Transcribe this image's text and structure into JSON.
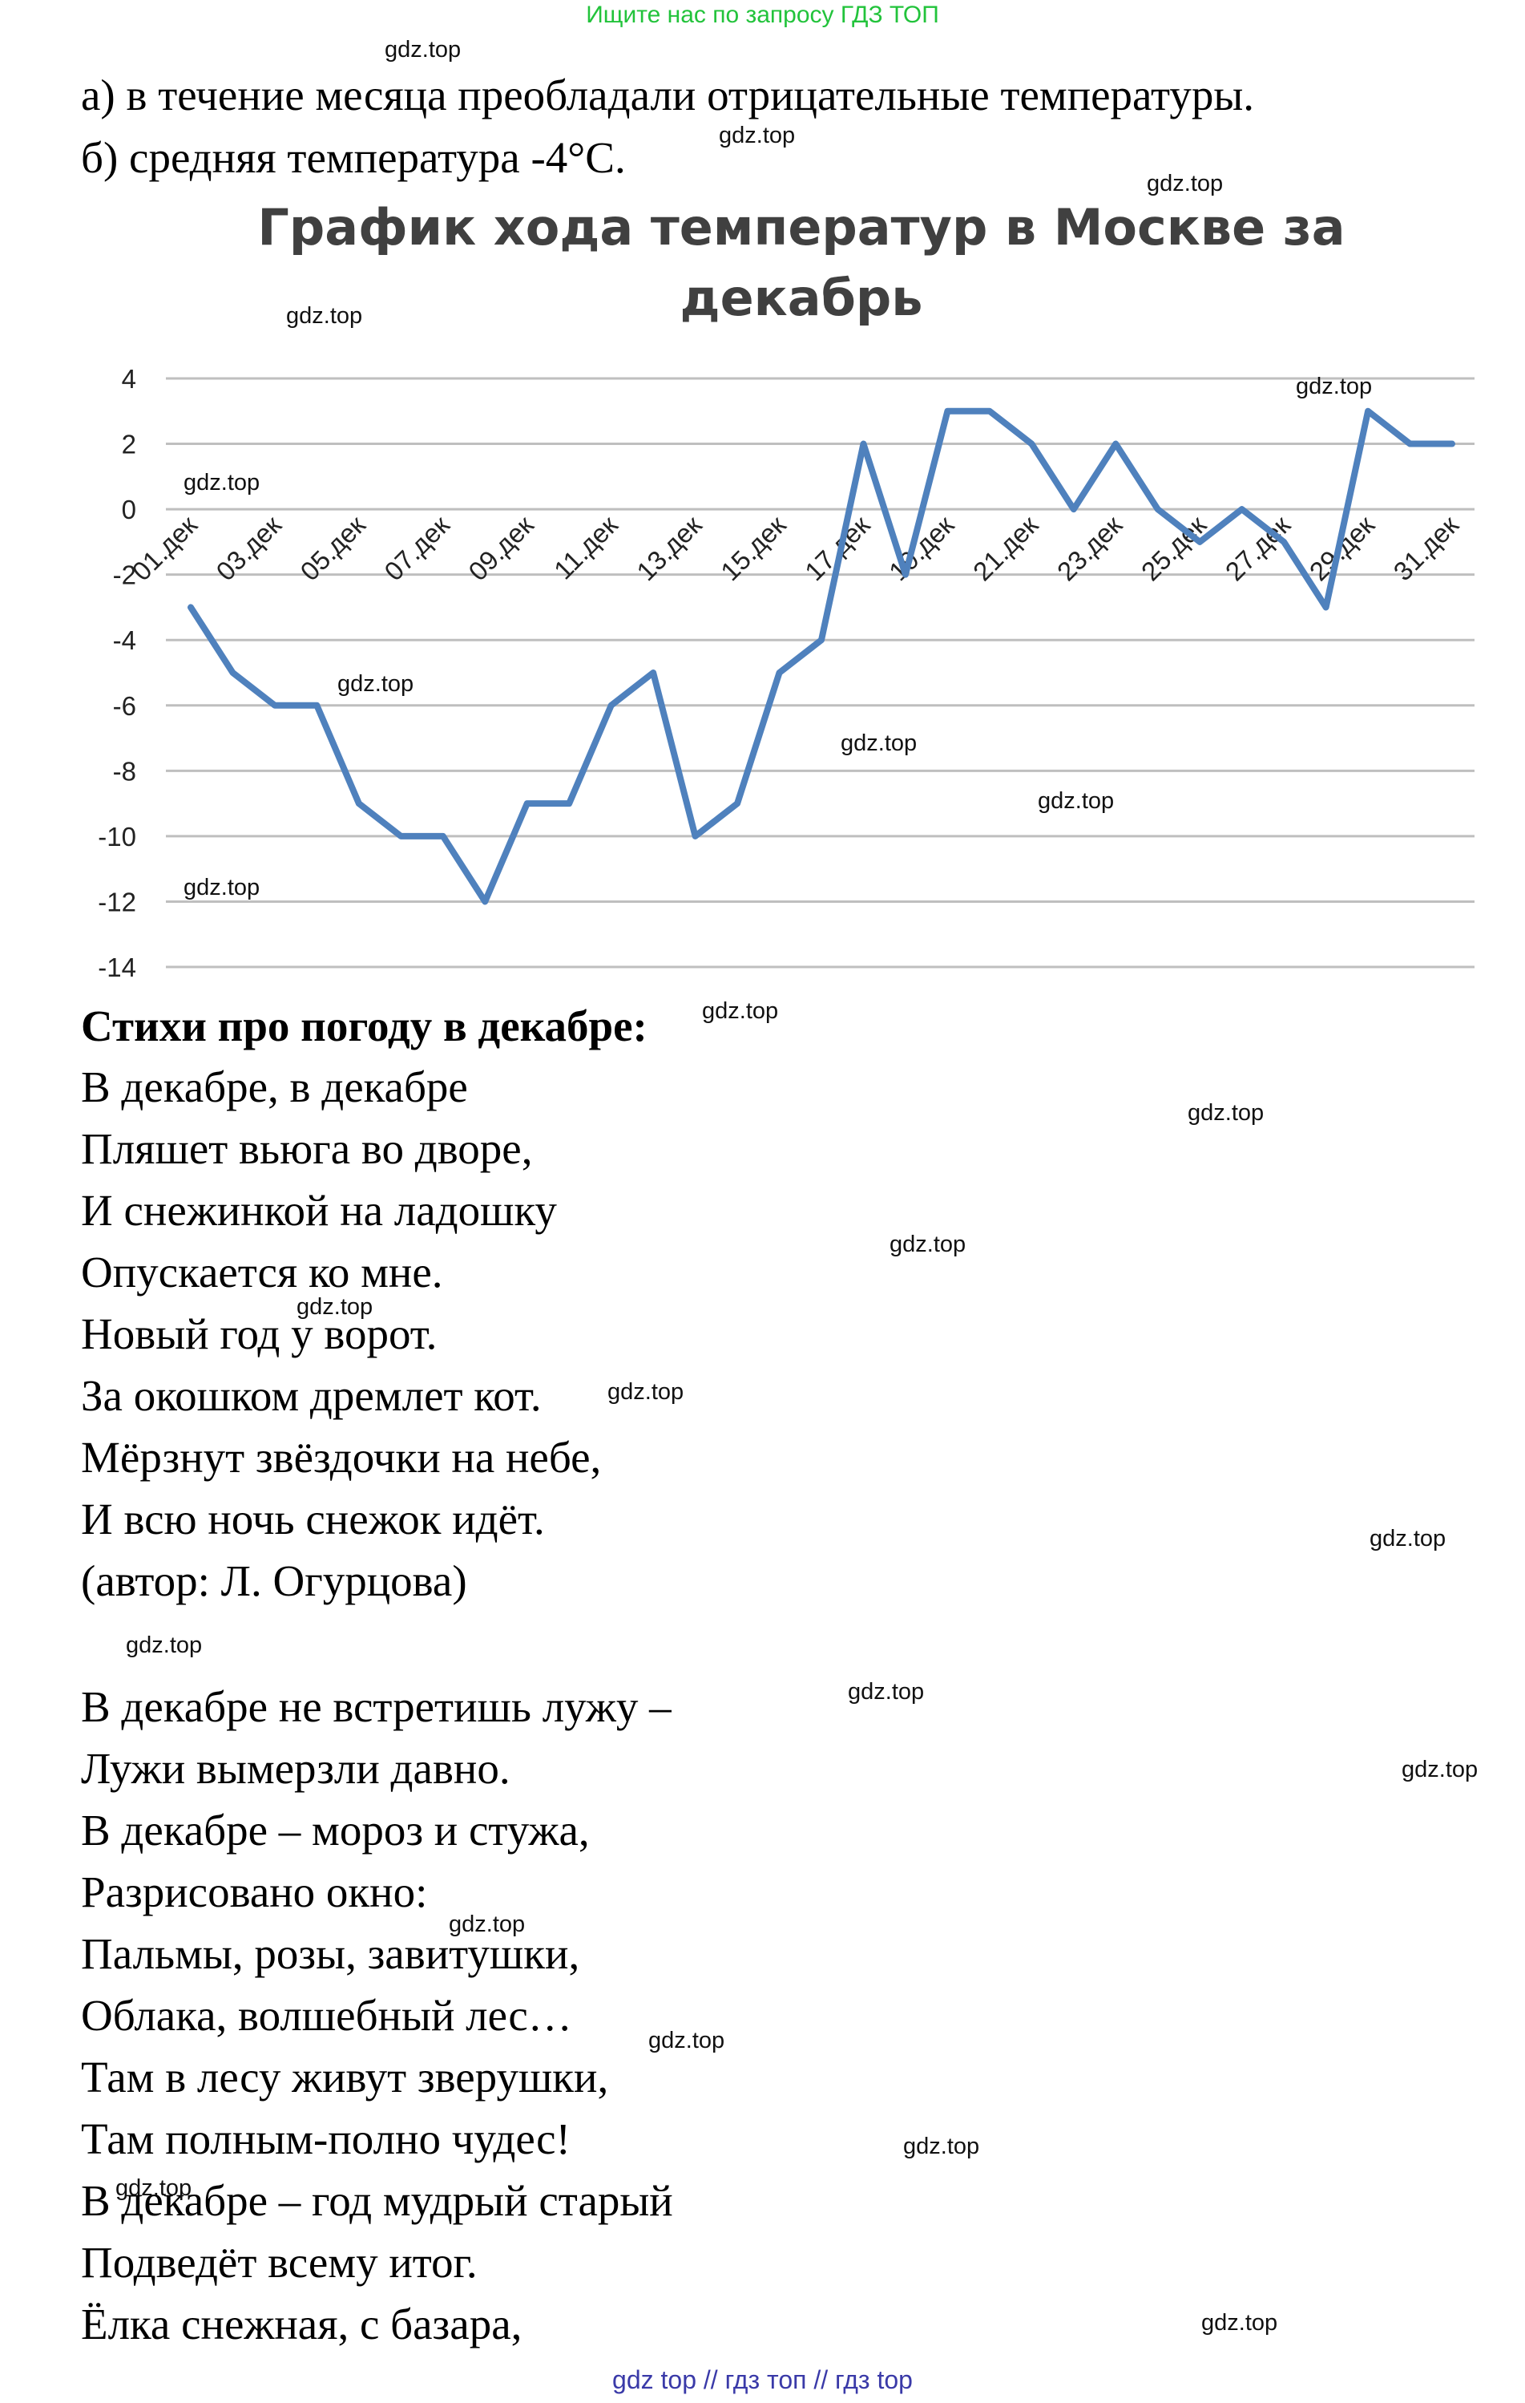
{
  "header": {
    "banner": "Ищите нас по запросу ГДЗ ТОП"
  },
  "answers": {
    "a": "а) в течение месяца преобладали отрицательные температуры.",
    "b": "б) средняя температура -4°C."
  },
  "chart_data": {
    "type": "line",
    "title": "График хода температур в Москве за декабрь",
    "title_lines": [
      "График хода температур в Москве за",
      "декабрь"
    ],
    "xlabel": "",
    "ylabel": "",
    "ylim": [
      -14,
      4
    ],
    "yticks": [
      4,
      2,
      0,
      -2,
      -4,
      -6,
      -8,
      -10,
      -12,
      -14
    ],
    "grid": true,
    "legend": "none",
    "color": "#4f81bd",
    "x": [
      "01.дек",
      "02.дек",
      "03.дек",
      "04.дек",
      "05.дек",
      "06.дек",
      "07.дек",
      "08.дек",
      "09.дек",
      "10.дек",
      "11.дек",
      "12.дек",
      "13.дек",
      "14.дек",
      "15.дек",
      "16.дек",
      "17.дек",
      "18.дек",
      "19.дек",
      "20.дек",
      "21.дек",
      "22.дек",
      "23.дек",
      "24.дек",
      "25.дек",
      "26.дек",
      "27.дек",
      "28.дек",
      "29.дек",
      "30.дек",
      "31.дек"
    ],
    "xtick_labels": [
      "01.дек",
      "03.дек",
      "05.дек",
      "07.дек",
      "09.дек",
      "11.дек",
      "13.дек",
      "15.дек",
      "17.дек",
      "19.дек",
      "21.дек",
      "23.дек",
      "25.дек",
      "27.дек",
      "29.дек",
      "31.дек"
    ],
    "values": [
      -3,
      -5,
      -6,
      -6,
      -9,
      -10,
      -10,
      -12,
      -9,
      -9,
      -6,
      -5,
      -10,
      -9,
      -5,
      -4,
      2,
      -2,
      3,
      3,
      2,
      0,
      2,
      0,
      -1,
      0,
      -1,
      -3,
      3,
      2,
      2
    ]
  },
  "poems": {
    "heading": "Стихи про погоду в декабре:",
    "first": [
      "В декабре, в декабре",
      "Пляшет вьюга во дворе,",
      "И снежинкой на ладошку",
      "Опускается ко мне.",
      "Новый год у ворот.",
      "За окошком дремлет кот.",
      "Мёрзнут звёздочки на небе,",
      "И всю ночь снежок идёт.",
      "(автор: Л. Огурцова)"
    ],
    "second": [
      "В декабре не встретишь лужу –",
      "Лужи вымерзли давно.",
      "В декабре – мороз и стужа,",
      "Разрисовано окно:",
      "Пальмы, розы, завитушки,",
      "Облака, волшебный лес…",
      "Там в лесу живут зверушки,",
      "Там полным-полно чудес!",
      "В декабре – год мудрый старый",
      "Подведёт всему итог.",
      "Ёлка снежная, с базара,"
    ]
  },
  "watermark": {
    "text": "gdz.top"
  },
  "footer": {
    "text": "gdz top  //  гдз топ  //  гдз top"
  }
}
